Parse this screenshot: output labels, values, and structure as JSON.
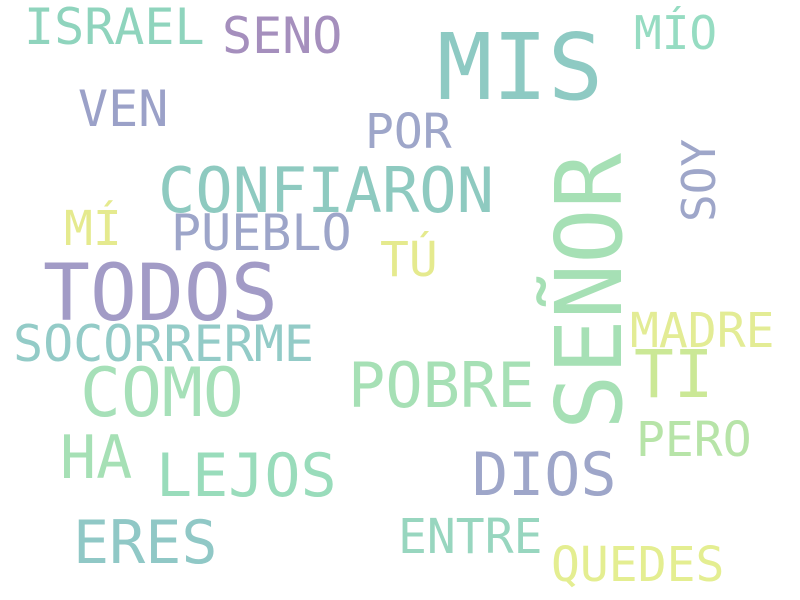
{
  "words": [
    {
      "key": "mis",
      "text": "MIS",
      "color": "#8ecac3"
    },
    {
      "key": "senor",
      "text": "SEÑOR",
      "color": "#a6e0b5"
    },
    {
      "key": "todos",
      "text": "TODOS",
      "color": "#a29bc6"
    },
    {
      "key": "confiaron",
      "text": "CONFIARON",
      "color": "#8ecac0"
    },
    {
      "key": "como",
      "text": "COMO",
      "color": "#a6e0b8"
    },
    {
      "key": "israel",
      "text": "ISRAEL",
      "color": "#8fd4bd"
    },
    {
      "key": "seno",
      "text": "SENO",
      "color": "#a58fbd"
    },
    {
      "key": "mio",
      "text": "MÍO",
      "color": "#96dcc2"
    },
    {
      "key": "ven",
      "text": "VEN",
      "color": "#9ba1c8"
    },
    {
      "key": "por",
      "text": "POR",
      "color": "#9ea6c9"
    },
    {
      "key": "soy",
      "text": "SOY",
      "color": "#9ea6c9"
    },
    {
      "key": "mi",
      "text": "MÍ",
      "color": "#e5ea8e"
    },
    {
      "key": "pueblo",
      "text": "PUEBLO",
      "color": "#9da5c9"
    },
    {
      "key": "tu",
      "text": "TÚ",
      "color": "#e5ea8e"
    },
    {
      "key": "socorrerme",
      "text": "SOCORRERME",
      "color": "#93cbc7"
    },
    {
      "key": "madre",
      "text": "MADRE",
      "color": "#e3ec95"
    },
    {
      "key": "ti",
      "text": "TI",
      "color": "#cbe896"
    },
    {
      "key": "pobre",
      "text": "POBRE",
      "color": "#a6e0b5"
    },
    {
      "key": "ha",
      "text": "HA",
      "color": "#a6e0b5"
    },
    {
      "key": "lejos",
      "text": "LEJOS",
      "color": "#99dcbb"
    },
    {
      "key": "dios",
      "text": "DIOS",
      "color": "#9ea6c9"
    },
    {
      "key": "pero",
      "text": "PERO",
      "color": "#b7e4a8"
    },
    {
      "key": "eres",
      "text": "ERES",
      "color": "#90c8c6"
    },
    {
      "key": "entre",
      "text": "ENTRE",
      "color": "#98d6bf"
    },
    {
      "key": "quedes",
      "text": "QUEDES",
      "color": "#e4ee91"
    }
  ]
}
